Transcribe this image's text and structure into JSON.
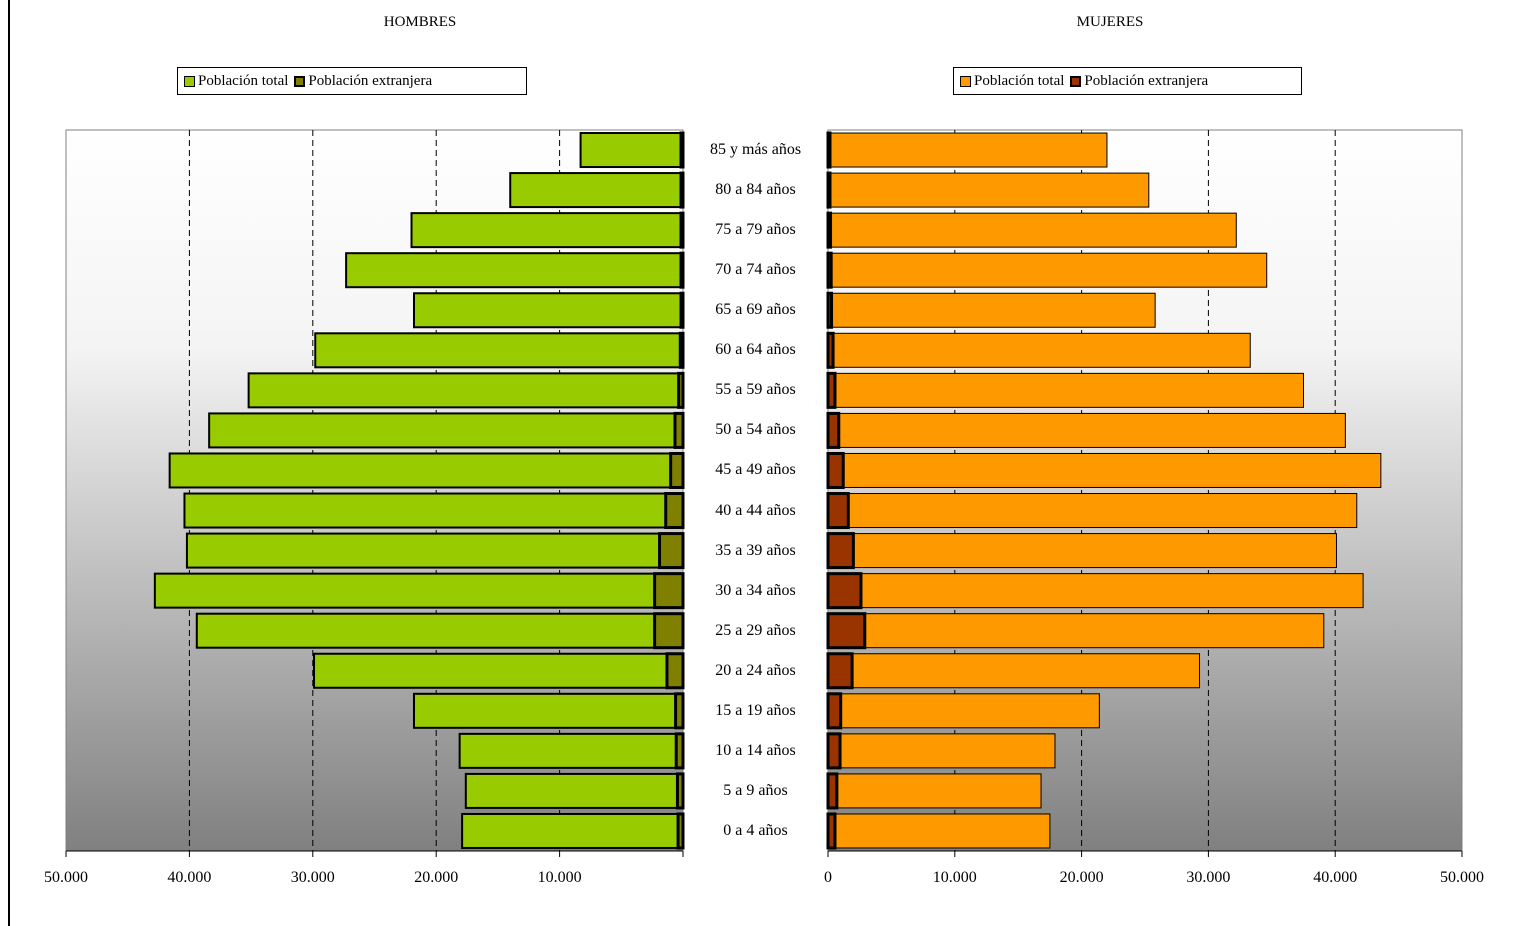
{
  "panels": {
    "men": {
      "title": "HOMBRES",
      "legend": [
        "Población total",
        "Población extranjera"
      ],
      "colors": {
        "total": "#99cc00",
        "foreign": "#808000"
      }
    },
    "women": {
      "title": "MUJERES",
      "legend": [
        "Población total",
        "Población extranjera"
      ],
      "colors": {
        "total": "#ff9900",
        "foreign": "#993300"
      }
    }
  },
  "chart_data": {
    "type": "bar",
    "orientation": "horizontal",
    "categories": [
      "85 y más años",
      "80 a 84 años",
      "75 a 79 años",
      "70 a 74 años",
      "65 a 69 años",
      "60 a 64 años",
      "55 a 59 años",
      "50 a 54 años",
      "45 a 49 años",
      "40 a 44 años",
      "35 a 39 años",
      "30 a 34 años",
      "25 a 29 años",
      "20 a 24 años",
      "15 a 19 años",
      "10 a 14 años",
      "5 a 9 años",
      "0 a 4 años"
    ],
    "xlim": [
      0,
      50000
    ],
    "men_ticks": [
      "50.000",
      "40.000",
      "30.000",
      "20.000",
      "10.000"
    ],
    "women_ticks": [
      "0",
      "10.000",
      "20.000",
      "30.000",
      "40.000",
      "50.000"
    ],
    "grid": true,
    "series": [
      {
        "name": "Población total",
        "sex": "HOMBRES",
        "values": [
          8300,
          14000,
          22000,
          27300,
          21800,
          29800,
          35200,
          38400,
          41600,
          40400,
          40200,
          42800,
          39400,
          29900,
          21800,
          18100,
          17600,
          17900
        ]
      },
      {
        "name": "Población extranjera",
        "sex": "HOMBRES",
        "values": [
          30,
          60,
          80,
          100,
          150,
          220,
          350,
          650,
          1000,
          1400,
          1900,
          2300,
          2300,
          1300,
          600,
          550,
          450,
          400
        ]
      },
      {
        "name": "Población total",
        "sex": "MUJERES",
        "values": [
          22000,
          25300,
          32200,
          34600,
          25800,
          33300,
          37500,
          40800,
          43600,
          41700,
          40100,
          42200,
          39100,
          29300,
          21400,
          17900,
          16800,
          17500
        ]
      },
      {
        "name": "Población extranjera",
        "sex": "MUJERES",
        "values": [
          20,
          150,
          200,
          250,
          280,
          400,
          550,
          850,
          1200,
          1600,
          2000,
          2600,
          2900,
          1900,
          1000,
          950,
          700,
          550
        ]
      }
    ]
  }
}
